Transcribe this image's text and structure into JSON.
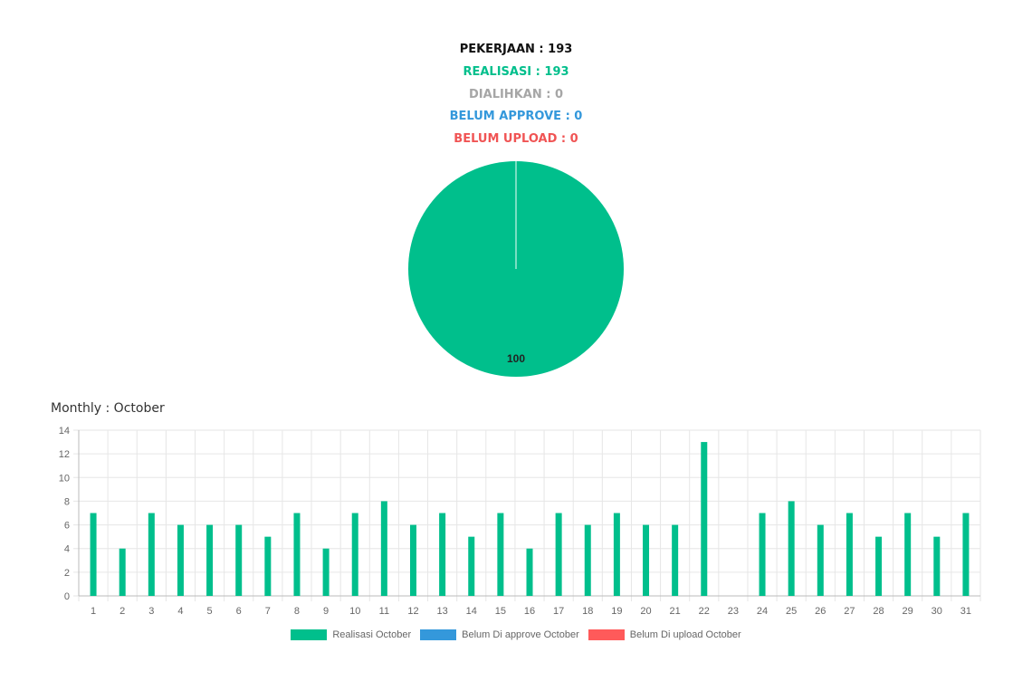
{
  "summary": {
    "pekerjaan": "PEKERJAAN : 193",
    "realisasi": "REALISASI : 193",
    "dialihkan": "DIALIHKAN : 0",
    "belum_approve": "BELUM APPROVE : 0",
    "belum_upload": "BELUM UPLOAD : 0"
  },
  "colors": {
    "pekerjaan": "#111111",
    "realisasi": "#00BF8C",
    "dialihkan": "#A6A6A6",
    "belum_approve": "#3498DB",
    "belum_upload": "#F05454",
    "grid": "#E6E6E6",
    "axis": "#666666"
  },
  "monthly": {
    "title": "Monthly : October"
  },
  "chart_data": [
    {
      "type": "pie",
      "slices": [
        {
          "name": "Realisasi",
          "value": 193,
          "label": "100",
          "color": "#00BF8C"
        },
        {
          "name": "Dialihkan",
          "value": 0,
          "color": "#A6A6A6"
        },
        {
          "name": "Belum Approve",
          "value": 0,
          "color": "#3498DB"
        },
        {
          "name": "Belum Upload",
          "value": 0,
          "color": "#F05454"
        }
      ]
    },
    {
      "type": "bar",
      "categories": [
        "1",
        "2",
        "3",
        "4",
        "5",
        "6",
        "7",
        "8",
        "9",
        "10",
        "11",
        "12",
        "13",
        "14",
        "15",
        "16",
        "17",
        "18",
        "19",
        "20",
        "21",
        "22",
        "23",
        "24",
        "25",
        "26",
        "27",
        "28",
        "29",
        "30",
        "31"
      ],
      "series": [
        {
          "name": "Realisasi October",
          "color": "#00BF8C",
          "values": [
            7,
            4,
            7,
            6,
            6,
            6,
            5,
            7,
            4,
            7,
            8,
            6,
            7,
            5,
            7,
            4,
            7,
            6,
            7,
            6,
            6,
            13,
            0,
            7,
            8,
            6,
            7,
            5,
            7,
            5,
            7
          ]
        },
        {
          "name": "Belum Di approve October",
          "color": "#3498DB",
          "values": [
            0,
            0,
            0,
            0,
            0,
            0,
            0,
            0,
            0,
            0,
            0,
            0,
            0,
            0,
            0,
            0,
            0,
            0,
            0,
            0,
            0,
            0,
            0,
            0,
            0,
            0,
            0,
            0,
            0,
            0,
            0
          ]
        },
        {
          "name": "Belum Di upload October",
          "color": "#FF5A5A",
          "values": [
            0,
            0,
            0,
            0,
            0,
            0,
            0,
            0,
            0,
            0,
            0,
            0,
            0,
            0,
            0,
            0,
            0,
            0,
            0,
            0,
            0,
            0,
            0,
            0,
            0,
            0,
            0,
            0,
            0,
            0,
            0
          ]
        }
      ],
      "ylim": [
        0,
        14
      ],
      "yticks": [
        0,
        2,
        4,
        6,
        8,
        10,
        12,
        14
      ],
      "grid": true,
      "legend": "bottom"
    }
  ]
}
